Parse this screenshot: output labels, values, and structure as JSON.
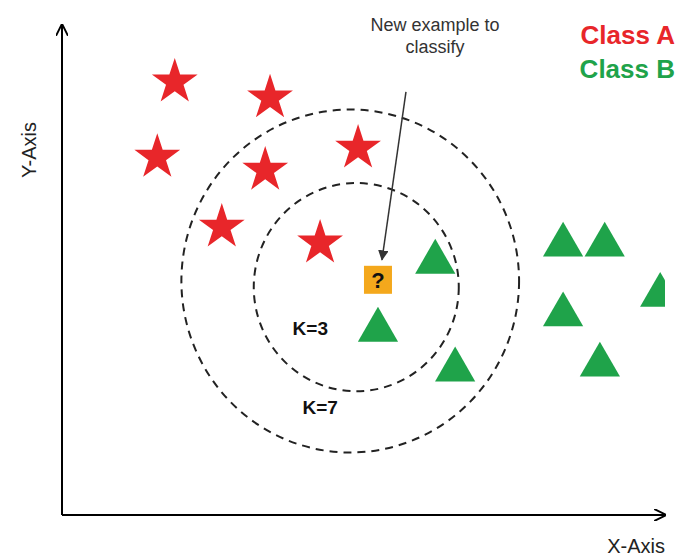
{
  "chart_data": {
    "type": "scatter",
    "x_label": "X-Axis",
    "y_label": "Y-Axis",
    "xlim": [
      0,
      100
    ],
    "ylim": [
      0,
      80
    ],
    "tick_labels": false,
    "grid": false,
    "legend": "top-right",
    "series": [
      {
        "name": "Class A",
        "color": "#e8262a",
        "marker": "star",
        "x": [
          18.7,
          34.5,
          15.8,
          33.7,
          49.1,
          26.5,
          42.8
        ],
        "y": [
          70.7,
          68.1,
          58.4,
          56.3,
          59.9,
          47.0,
          44.4
        ]
      },
      {
        "name": "Class B",
        "color": "#1fa34a",
        "marker": "triangle",
        "x": [
          61.9,
          52.4,
          65.2,
          83.1,
          90.0,
          99.2,
          83.1,
          89.2
        ],
        "y": [
          41.3,
          30.2,
          23.7,
          44.1,
          44.1,
          35.9,
          32.7,
          24.5
        ]
      }
    ],
    "query": {
      "label": "?",
      "annotation": "New example to classify",
      "color": "#f4a81c",
      "marker": "square",
      "x": 52.4,
      "y": 38.4
    },
    "neighborhoods": [
      {
        "label": "K=3",
        "cx": 48.8,
        "cy": 37.2,
        "r": 17.0,
        "line_style": "dashed"
      },
      {
        "label": "K=7",
        "cx": 47.8,
        "cy": 38.2,
        "r": 28.0,
        "line_style": "dashed"
      }
    ]
  }
}
